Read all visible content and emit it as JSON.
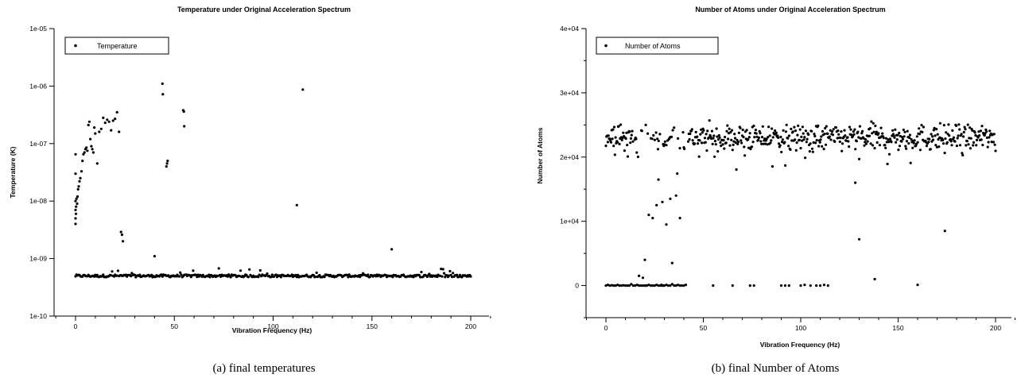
{
  "captions": {
    "left": "(a) final temperatures",
    "right": "(b) final Number of Atoms"
  },
  "chart_data": [
    {
      "type": "scatter",
      "title": "Temperature under Original Acceleration Spectrum",
      "xlabel": "Vibration Frequency (Hz)",
      "ylabel": "Temperature (K)",
      "xlim": [
        -10,
        210
      ],
      "ylim": [
        1e-10,
        1e-05
      ],
      "yscale": "log",
      "xticks": [
        0,
        50,
        100,
        150,
        200
      ],
      "xtick_labels": [
        "0",
        "50",
        "100",
        "150",
        "200"
      ],
      "yticks": [
        1e-10,
        1e-09,
        1e-08,
        1e-07,
        1e-06,
        1e-05
      ],
      "ytick_labels": [
        "1e-10",
        "1e-09",
        "1e-08",
        "1e-07",
        "1e-06",
        "1e-05"
      ],
      "legend": {
        "label": "Temperature",
        "position": "top-left"
      },
      "grid": false,
      "color": "#000000",
      "baseline": {
        "value": 5e-10,
        "x_from": 0,
        "x_to": 200,
        "step": 0.5,
        "jitter": 0.1
      },
      "x": [
        0,
        0,
        0,
        0,
        0,
        0,
        0.2,
        0.3,
        0.5,
        0.8,
        1,
        1.3,
        1.6,
        2,
        2.4,
        3,
        3.5,
        4,
        4.5,
        5,
        5.5,
        6,
        6.5,
        7,
        7.5,
        8,
        8.5,
        9,
        9.5,
        10,
        11,
        12,
        13,
        14,
        15,
        16,
        17,
        18,
        19,
        20,
        21,
        22,
        23,
        23.5,
        24,
        44,
        44.2,
        46,
        46.3,
        46.6,
        54.5,
        54.8,
        55,
        112,
        115,
        160,
        40
      ],
      "y": [
        4e-09,
        5e-09,
        7e-09,
        1e-08,
        3e-08,
        6.5e-08,
        6e-09,
        8e-09,
        1.1e-08,
        9e-09,
        1.2e-08,
        1.6e-08,
        1.8e-08,
        2.2e-08,
        2.5e-08,
        3.3e-08,
        5e-08,
        6.5e-08,
        7e-08,
        8e-08,
        8.5e-08,
        7.5e-08,
        2.1e-07,
        2.4e-07,
        1.2e-07,
        9e-08,
        8e-08,
        7e-08,
        1.9e-07,
        1.5e-07,
        4.5e-08,
        1.6e-07,
        1.8e-07,
        2.8e-07,
        2.3e-07,
        2.6e-07,
        2.4e-07,
        1.7e-07,
        2.5e-07,
        2.7e-07,
        3.5e-07,
        1.6e-07,
        2.9e-09,
        2.6e-09,
        2e-09,
        1.1e-06,
        7.2e-07,
        4e-08,
        4.5e-08,
        5e-08,
        3.8e-07,
        3.6e-07,
        2e-07,
        8.5e-09,
        8.7e-07,
        1.45e-09,
        1.1e-09
      ]
    },
    {
      "type": "scatter",
      "title": "Number of Atoms under Original Acceleration Spectrum",
      "xlabel": "Vibration Frequency (Hz)",
      "ylabel": "Number of Atoms",
      "xlim": [
        -10,
        210
      ],
      "ylim": [
        -5000,
        40000
      ],
      "xticks": [
        0,
        50,
        100,
        150,
        200
      ],
      "xtick_labels": [
        "0",
        "50",
        "100",
        "150",
        "200"
      ],
      "yticks": [
        0,
        10000,
        20000,
        30000,
        40000
      ],
      "ytick_labels": [
        "0",
        "1e+04",
        "2e+04",
        "3e+04",
        "4e+04"
      ],
      "legend": {
        "label": "Number of Atoms",
        "position": "top-left"
      },
      "grid": false,
      "color": "#000000",
      "band": {
        "center": 23000,
        "spread": 2600,
        "x_from": 0,
        "x_to": 200,
        "step": 0.33
      },
      "x": [
        0,
        1,
        2,
        3,
        4,
        5,
        6,
        7,
        8,
        9,
        10,
        11,
        12,
        13,
        14,
        15,
        16,
        17,
        18,
        19,
        20,
        20.5,
        21,
        22,
        23,
        24,
        25,
        26,
        27,
        28,
        28.5,
        29,
        29.5,
        30,
        31,
        32,
        33,
        34,
        35,
        36,
        37,
        38,
        39,
        40,
        41,
        55,
        65,
        74,
        76,
        90,
        92,
        94,
        100,
        102,
        105,
        108,
        110,
        112,
        114,
        128,
        130,
        138,
        160,
        174,
        17,
        19,
        20,
        22,
        24,
        26,
        27,
        29,
        31,
        33,
        34,
        36,
        38,
        40
      ],
      "y": [
        0,
        100,
        0,
        50,
        0,
        0,
        100,
        0,
        0,
        50,
        0,
        0,
        0,
        200,
        0,
        0,
        100,
        0,
        0,
        0,
        0,
        0,
        0,
        100,
        0,
        0,
        0,
        100,
        0,
        0,
        100,
        0,
        0,
        0,
        100,
        0,
        0,
        200,
        0,
        0,
        100,
        0,
        0,
        0,
        100,
        0,
        0,
        0,
        0,
        0,
        0,
        0,
        0,
        100,
        0,
        0,
        0,
        100,
        0,
        16000,
        7200,
        1000,
        100,
        8500,
        1500,
        1200,
        4000,
        11000,
        10500,
        12500,
        16500,
        13000,
        9500,
        13500,
        3500,
        14000,
        10500,
        21500
      ]
    }
  ]
}
